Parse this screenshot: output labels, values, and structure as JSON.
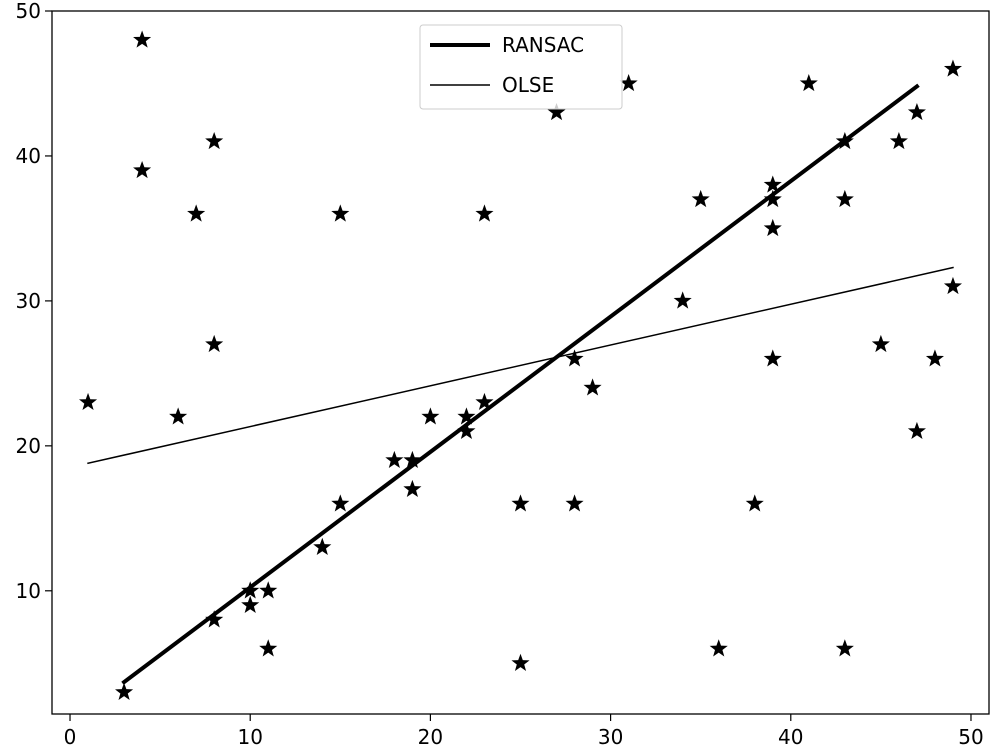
{
  "chart_data": {
    "type": "scatter",
    "title": "",
    "xlabel": "",
    "ylabel": "",
    "xlim": [
      -1,
      51
    ],
    "ylim": [
      1.5,
      50
    ],
    "xticks": [
      0,
      10,
      20,
      30,
      40,
      50
    ],
    "yticks": [
      10,
      20,
      30,
      40,
      50
    ],
    "grid": false,
    "legend_placement": "upper-center",
    "points": {
      "marker": "star",
      "color": "#000000",
      "x": [
        1,
        3,
        4,
        4,
        6,
        7,
        8,
        8,
        8,
        10,
        10,
        11,
        11,
        14,
        15,
        15,
        18,
        19,
        19,
        20,
        22,
        22,
        23,
        23,
        25,
        25,
        27,
        28,
        28,
        29,
        31,
        34,
        35,
        36,
        38,
        39,
        39,
        39,
        39,
        41,
        43,
        43,
        43,
        45,
        46,
        47,
        47,
        48,
        49,
        49
      ],
      "y": [
        23,
        3,
        48,
        39,
        22,
        36,
        41,
        27,
        8,
        10,
        9,
        10,
        6,
        13,
        36,
        16,
        19,
        19,
        17,
        22,
        22,
        21,
        36,
        23,
        16,
        5,
        43,
        26,
        16,
        24,
        45,
        30,
        37,
        6,
        16,
        38,
        37,
        35,
        26,
        45,
        41,
        37,
        6,
        27,
        41,
        43,
        21,
        26,
        46,
        31
      ]
    },
    "series": [
      {
        "name": "RANSAC",
        "x": [
          3,
          47
        ],
        "y": [
          3.7,
          44.8
        ],
        "line_width": "thick",
        "color": "#000000"
      },
      {
        "name": "OLSE",
        "x": [
          1,
          49
        ],
        "y": [
          18.8,
          32.3
        ],
        "line_width": "thin",
        "color": "#000000"
      }
    ]
  }
}
